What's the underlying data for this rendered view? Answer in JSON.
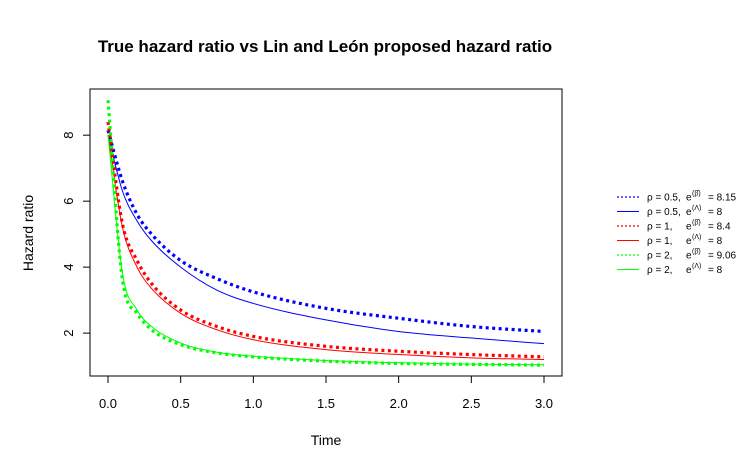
{
  "chart_data": {
    "type": "line",
    "title": "True hazard ratio vs Lin and León proposed hazard ratio",
    "xlabel": "Time",
    "ylabel": "Hazard ratio",
    "xlim": [
      0,
      3
    ],
    "ylim": [
      0.7,
      9.4
    ],
    "xticks": [
      0,
      0.5,
      1,
      1.5,
      2,
      2.5,
      3
    ],
    "xtick_labels": [
      "0.0",
      "0.5",
      "1.0",
      "1.5",
      "2.0",
      "2.5",
      "3.0"
    ],
    "yticks": [
      2,
      4,
      6,
      8
    ],
    "ytick_labels": [
      "2",
      "4",
      "6",
      "8"
    ],
    "grid": false,
    "legend_position": "right",
    "x": [
      0,
      0.1,
      0.2,
      0.3,
      0.5,
      0.75,
      1,
      1.5,
      2,
      2.5,
      3
    ],
    "series": [
      {
        "name_parts": [
          "ρ = 0.5,",
          "e",
          "(β̄)",
          "= 8.15"
        ],
        "color": "#0000ff",
        "style": "dotted",
        "values": [
          8.15,
          6.6,
          5.6,
          5.0,
          4.2,
          3.65,
          3.25,
          2.75,
          2.45,
          2.2,
          2.05
        ]
      },
      {
        "name_parts": [
          "ρ = 0.5,",
          "e",
          "(Λ)",
          "= 8"
        ],
        "color": "#0000ff",
        "style": "solid",
        "values": [
          8.0,
          6.3,
          5.4,
          4.8,
          4.0,
          3.3,
          2.9,
          2.4,
          2.05,
          1.85,
          1.68
        ]
      },
      {
        "name_parts": [
          "ρ = 1,",
          "e",
          "(β̄)",
          "= 8.4"
        ],
        "color": "#ff0000",
        "style": "dotted",
        "values": [
          8.4,
          5.3,
          4.2,
          3.5,
          2.7,
          2.2,
          1.9,
          1.6,
          1.45,
          1.35,
          1.28
        ]
      },
      {
        "name_parts": [
          "ρ = 1,",
          "e",
          "(Λ)",
          "= 8"
        ],
        "color": "#ff0000",
        "style": "solid",
        "values": [
          8.0,
          5.2,
          4.0,
          3.35,
          2.6,
          2.1,
          1.8,
          1.5,
          1.35,
          1.25,
          1.2
        ]
      },
      {
        "name_parts": [
          "ρ = 2,",
          "e",
          "(β̄)",
          "= 9.06"
        ],
        "color": "#00ff00",
        "style": "dotted",
        "values": [
          9.06,
          3.6,
          2.6,
          2.1,
          1.65,
          1.4,
          1.28,
          1.15,
          1.08,
          1.05,
          1.03
        ]
      },
      {
        "name_parts": [
          "ρ = 2,",
          "e",
          "(Λ)",
          "= 8"
        ],
        "color": "#00ff00",
        "style": "solid",
        "values": [
          8.0,
          3.8,
          2.7,
          2.2,
          1.7,
          1.42,
          1.3,
          1.17,
          1.1,
          1.06,
          1.04
        ]
      }
    ]
  }
}
